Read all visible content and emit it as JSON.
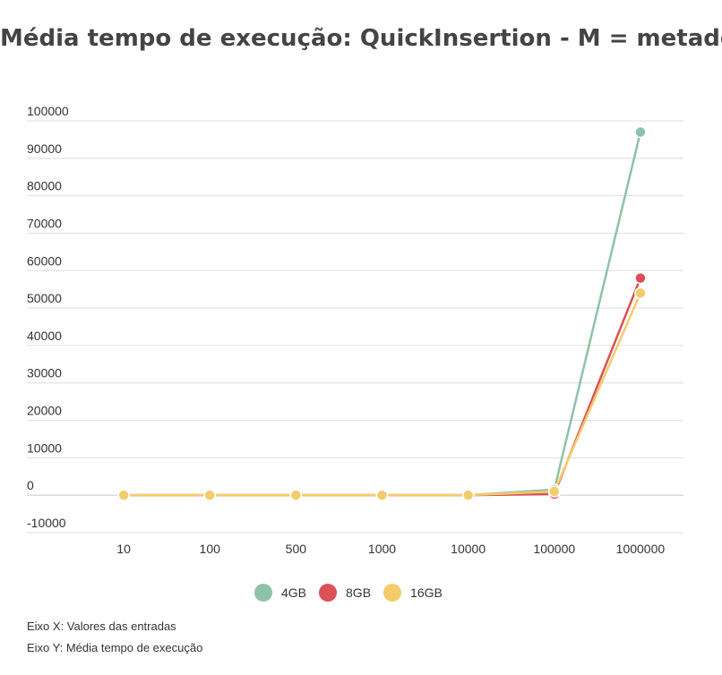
{
  "chart_data": {
    "type": "line",
    "title": "Média tempo de execução: QuickInsertion - M = metade",
    "categories": [
      "10",
      "100",
      "500",
      "1000",
      "10000",
      "100000",
      "1000000"
    ],
    "yticks": [
      "100000",
      "90000",
      "80000",
      "70000",
      "60000",
      "50000",
      "40000",
      "30000",
      "20000",
      "10000",
      "0",
      "-10000"
    ],
    "ylim": [
      -10000,
      100000
    ],
    "grid": true,
    "legend_position": "bottom",
    "series": [
      {
        "name": "4GB",
        "color": "#8dc3a7",
        "values": [
          0,
          0,
          0,
          0,
          0,
          1500,
          97000
        ]
      },
      {
        "name": "8GB",
        "color": "#db5157",
        "values": [
          0,
          0,
          0,
          0,
          0,
          300,
          58000
        ]
      },
      {
        "name": "16GB",
        "color": "#f2cc6b",
        "values": [
          0,
          0,
          0,
          0,
          0,
          1000,
          54000
        ]
      }
    ]
  },
  "captions": {
    "x_axis": "Eixo X: Valores das entradas",
    "y_axis": "Eixo Y: Média tempo de execução"
  }
}
